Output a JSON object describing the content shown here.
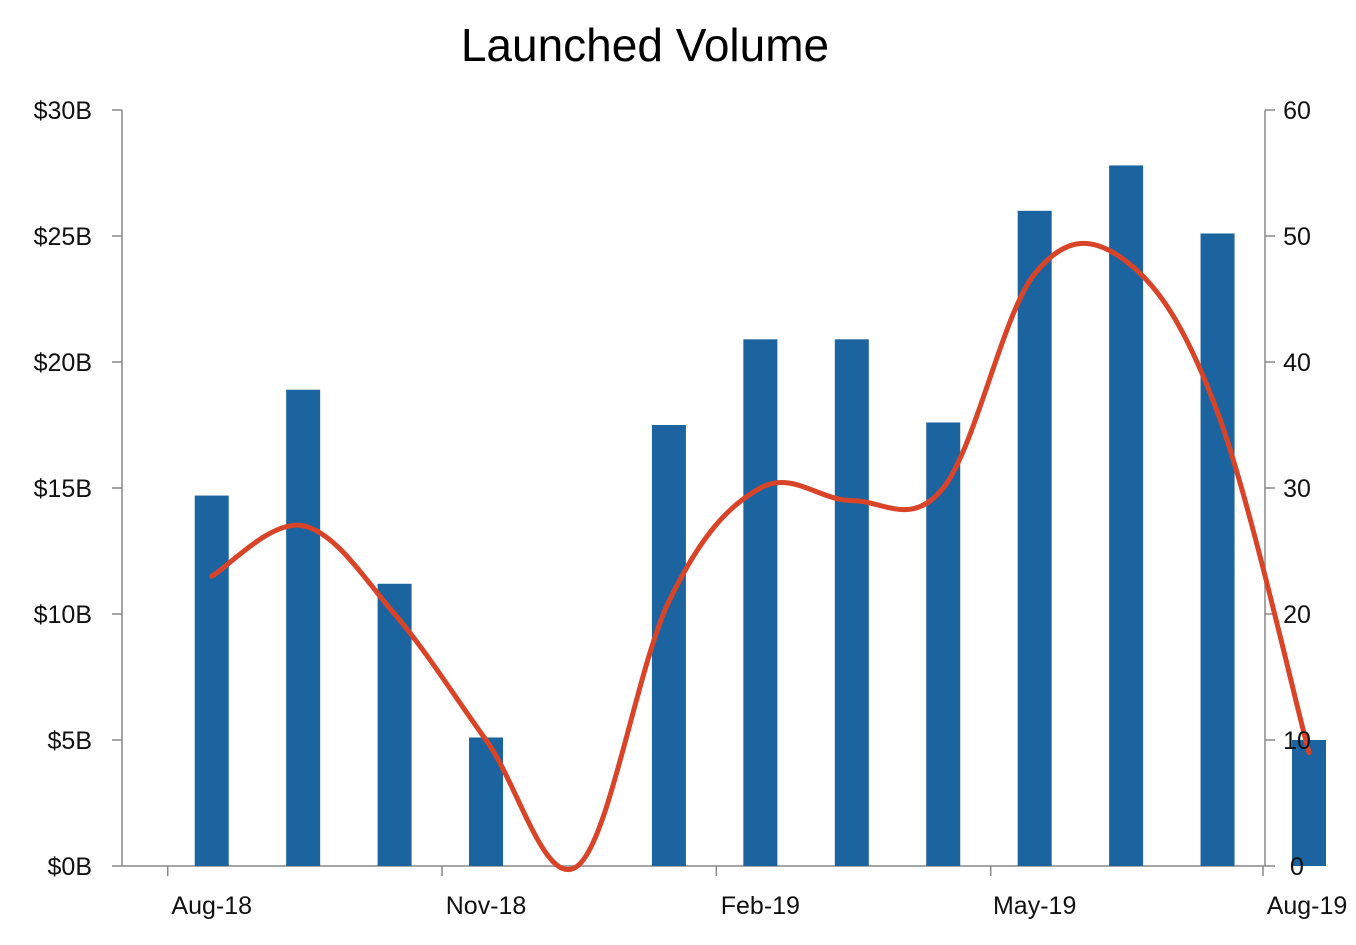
{
  "chart_data": {
    "type": "bar",
    "title": "Launched Volume",
    "xlabel": "",
    "ylabel": "",
    "x_tick_labels": [
      "Aug-18",
      "Nov-18",
      "Feb-19",
      "May-19",
      "Aug-19"
    ],
    "categories": [
      "Aug-18",
      "Sep-18",
      "Oct-18",
      "Nov-18",
      "Dec-18",
      "Jan-19",
      "Feb-19",
      "Mar-19",
      "Apr-19",
      "May-19",
      "Jun-19",
      "Jul-19",
      "Aug-19"
    ],
    "series": [
      {
        "type": "bar",
        "axis": "left",
        "color": "#1b64a0",
        "values": [
          14.7,
          18.9,
          11.2,
          5.1,
          0,
          17.5,
          20.9,
          20.9,
          17.6,
          26.0,
          27.8,
          25.1,
          5.0
        ]
      },
      {
        "type": "line",
        "axis": "right",
        "color": "#d94428",
        "smooth": true,
        "values": [
          23,
          27,
          20,
          10,
          0,
          21,
          30,
          29,
          30,
          47,
          48,
          36,
          9
        ]
      }
    ],
    "y_left": {
      "min": 0,
      "max": 30,
      "ticks": [
        0,
        5,
        10,
        15,
        20,
        25,
        30
      ],
      "tick_labels": [
        "$0B",
        "$5B",
        "$10B",
        "$15B",
        "$20B",
        "$25B",
        "$30B"
      ]
    },
    "y_right": {
      "min": 0,
      "max": 60,
      "ticks": [
        0,
        10,
        20,
        30,
        40,
        50,
        60
      ],
      "tick_labels": [
        "0",
        "10",
        "20",
        "30",
        "40",
        "50",
        "60"
      ]
    },
    "grid": false,
    "legend": "none"
  }
}
